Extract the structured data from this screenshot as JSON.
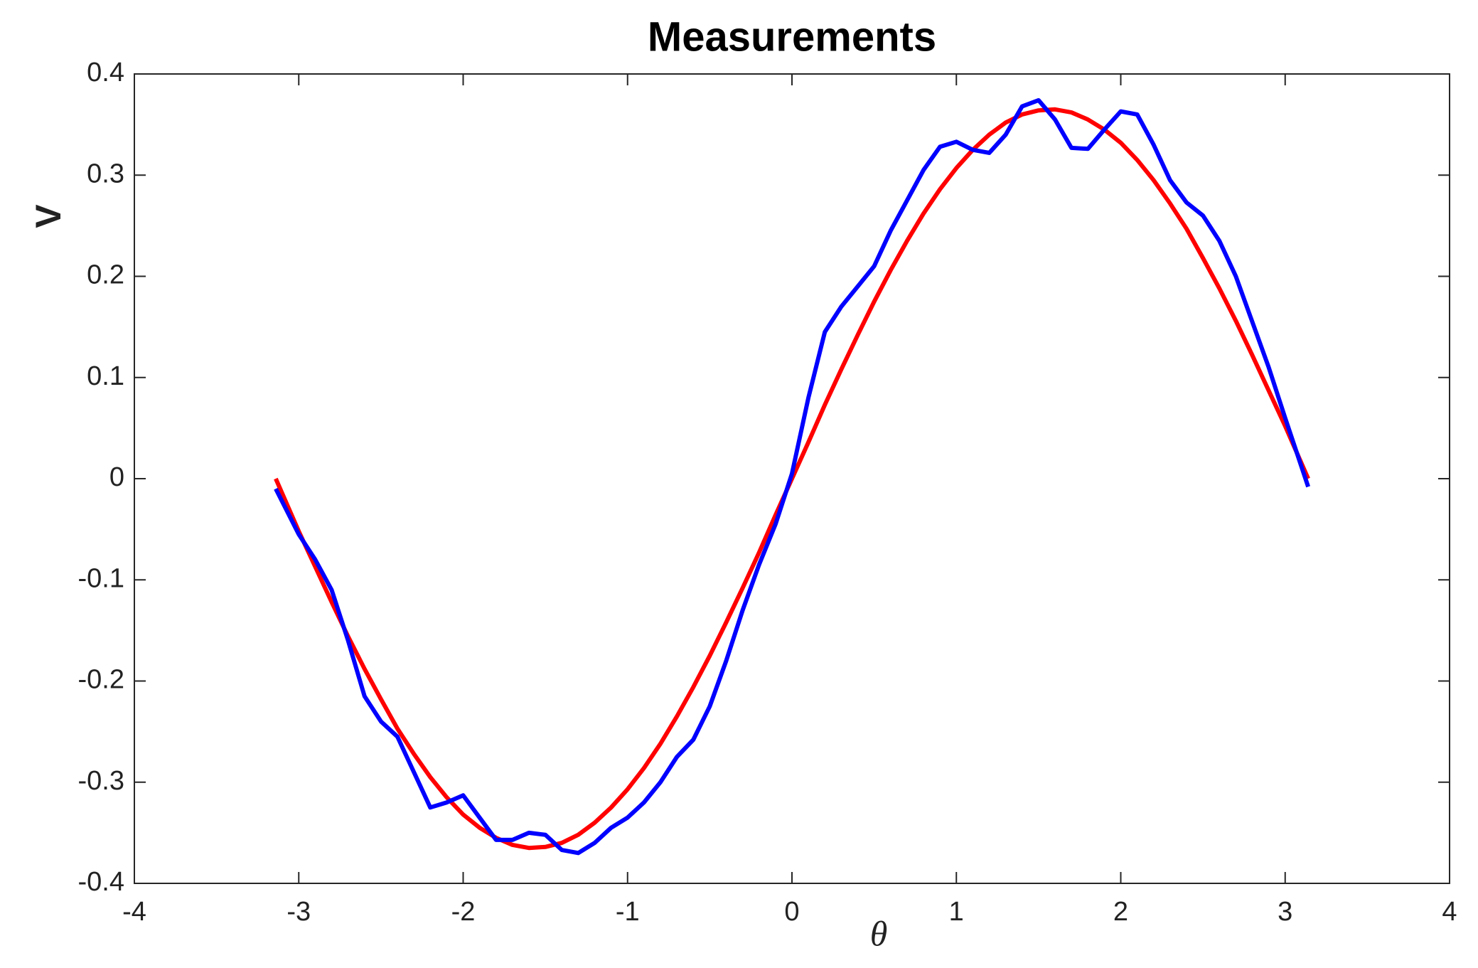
{
  "chart_data": {
    "type": "line",
    "title": "Measurements",
    "x_label": "θ",
    "y_label": "V",
    "x": [
      -3.14,
      -3.0,
      -2.9,
      -2.8,
      -2.7,
      -2.6,
      -2.5,
      -2.4,
      -2.3,
      -2.2,
      -2.1,
      -2.0,
      -1.9,
      -1.8,
      -1.7,
      -1.6,
      -1.5,
      -1.4,
      -1.3,
      -1.2,
      -1.1,
      -1.0,
      -0.9,
      -0.8,
      -0.7,
      -0.6,
      -0.5,
      -0.4,
      -0.3,
      -0.2,
      -0.1,
      0.0,
      0.1,
      0.2,
      0.3,
      0.4,
      0.5,
      0.6,
      0.7,
      0.8,
      0.9,
      1.0,
      1.1,
      1.2,
      1.3,
      1.4,
      1.5,
      1.6,
      1.7,
      1.8,
      1.9,
      2.0,
      2.1,
      2.2,
      2.3,
      2.4,
      2.5,
      2.6,
      2.7,
      2.8,
      2.9,
      3.0,
      3.14
    ],
    "series": [
      {
        "color": "#ff0000",
        "values": [
          0.0,
          -0.052,
          -0.087,
          -0.122,
          -0.156,
          -0.188,
          -0.218,
          -0.247,
          -0.272,
          -0.295,
          -0.315,
          -0.332,
          -0.345,
          -0.355,
          -0.362,
          -0.365,
          -0.364,
          -0.36,
          -0.352,
          -0.34,
          -0.325,
          -0.307,
          -0.286,
          -0.262,
          -0.235,
          -0.206,
          -0.175,
          -0.142,
          -0.108,
          -0.073,
          -0.036,
          0.0,
          0.036,
          0.073,
          0.108,
          0.142,
          0.175,
          0.206,
          0.235,
          0.262,
          0.286,
          0.307,
          0.325,
          0.34,
          0.352,
          0.36,
          0.364,
          0.365,
          0.362,
          0.355,
          0.345,
          0.332,
          0.315,
          0.295,
          0.272,
          0.247,
          0.218,
          0.188,
          0.156,
          0.122,
          0.087,
          0.052,
          0.0
        ]
      },
      {
        "color": "#0000ff",
        "values": [
          -0.01,
          -0.055,
          -0.08,
          -0.11,
          -0.16,
          -0.215,
          -0.24,
          -0.255,
          -0.29,
          -0.325,
          -0.32,
          -0.313,
          -0.335,
          -0.357,
          -0.357,
          -0.35,
          -0.352,
          -0.367,
          -0.37,
          -0.36,
          -0.345,
          -0.335,
          -0.32,
          -0.3,
          -0.275,
          -0.258,
          -0.225,
          -0.18,
          -0.13,
          -0.085,
          -0.045,
          0.005,
          0.08,
          0.145,
          0.17,
          0.19,
          0.21,
          0.245,
          0.275,
          0.305,
          0.328,
          0.333,
          0.325,
          0.322,
          0.34,
          0.368,
          0.374,
          0.355,
          0.327,
          0.326,
          0.345,
          0.363,
          0.36,
          0.33,
          0.295,
          0.273,
          0.26,
          0.235,
          0.2,
          0.155,
          0.11,
          0.06,
          -0.008
        ]
      }
    ],
    "xlim": [
      -4,
      4
    ],
    "xticks": [
      -4,
      -3,
      -2,
      -1,
      0,
      1,
      2,
      3,
      4
    ],
    "ylim": [
      -0.4,
      0.4
    ],
    "yticks": [
      -0.4,
      -0.3,
      -0.2,
      -0.1,
      0,
      0.1,
      0.2,
      0.3,
      0.4
    ],
    "grid": false
  }
}
